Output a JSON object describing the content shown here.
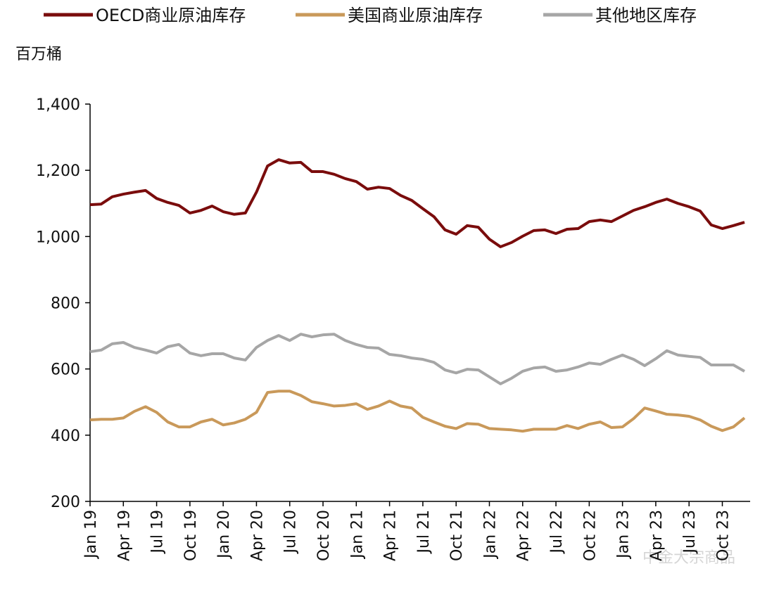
{
  "chart_data": {
    "type": "line",
    "y_label": "百万桶",
    "watermark": "中金大宗商品",
    "categories": [
      "Jan 19",
      null,
      null,
      "Apr 19",
      null,
      null,
      "Jul 19",
      null,
      null,
      "Oct 19",
      null,
      null,
      "Jan 20",
      null,
      null,
      "Apr 20",
      null,
      null,
      "Jul 20",
      null,
      null,
      "Oct 20",
      null,
      null,
      "Jan 21",
      null,
      null,
      "Apr 21",
      null,
      null,
      "Jul 21",
      null,
      null,
      "Oct 21",
      null,
      null,
      "Jan 22",
      null,
      null,
      "Apr 22",
      null,
      null,
      "Jul 22",
      null,
      null,
      "Oct 22",
      null,
      null,
      "Jan 23",
      null,
      null,
      "Apr 23",
      null,
      null,
      "Jul 23",
      null,
      null,
      "Oct 23",
      null,
      null
    ],
    "series": [
      {
        "name": "OECD商业原油库存",
        "color": "#7a0c0c",
        "values": [
          1096,
          1098,
          1120,
          1128,
          1134,
          1139,
          1115,
          1103,
          1094,
          1071,
          1079,
          1092,
          1075,
          1067,
          1071,
          1134,
          1213,
          1232,
          1222,
          1224,
          1196,
          1196,
          1188,
          1175,
          1166,
          1143,
          1149,
          1145,
          1124,
          1109,
          1084,
          1060,
          1020,
          1007,
          1033,
          1028,
          992,
          969,
          982,
          1001,
          1018,
          1020,
          1009,
          1022,
          1024,
          1045,
          1050,
          1045,
          1062,
          1079,
          1090,
          1103,
          1113,
          1100,
          1090,
          1077,
          1035,
          1024,
          1033,
          1043
        ]
      },
      {
        "name": "美国商业原油库存",
        "color": "#c9995a",
        "values": [
          446,
          448,
          448,
          452,
          472,
          486,
          469,
          440,
          425,
          425,
          440,
          448,
          431,
          437,
          448,
          469,
          529,
          533,
          533,
          520,
          501,
          495,
          488,
          490,
          495,
          478,
          488,
          503,
          488,
          482,
          454,
          440,
          427,
          420,
          435,
          433,
          420,
          418,
          416,
          412,
          418,
          418,
          418,
          429,
          420,
          433,
          440,
          423,
          425,
          450,
          482,
          473,
          463,
          461,
          457,
          446,
          427,
          414,
          425,
          452
        ]
      },
      {
        "name": "其他地区库存",
        "color": "#a6a6a6",
        "values": [
          652,
          657,
          676,
          680,
          665,
          657,
          648,
          667,
          674,
          648,
          640,
          646,
          646,
          633,
          627,
          665,
          686,
          701,
          686,
          705,
          697,
          703,
          705,
          686,
          674,
          665,
          663,
          644,
          640,
          633,
          629,
          620,
          597,
          588,
          599,
          597,
          576,
          555,
          572,
          593,
          603,
          606,
          593,
          597,
          606,
          618,
          614,
          629,
          642,
          629,
          610,
          631,
          655,
          642,
          638,
          635,
          612,
          612,
          612,
          593
        ]
      }
    ],
    "ylim": [
      200,
      1400
    ],
    "yticks": [
      200,
      400,
      600,
      800,
      {
        "value": 1000,
        "label": "1,000"
      },
      {
        "value": 1200,
        "label": "1,200"
      },
      {
        "value": 1400,
        "label": "1,400"
      }
    ],
    "legend": "top"
  }
}
